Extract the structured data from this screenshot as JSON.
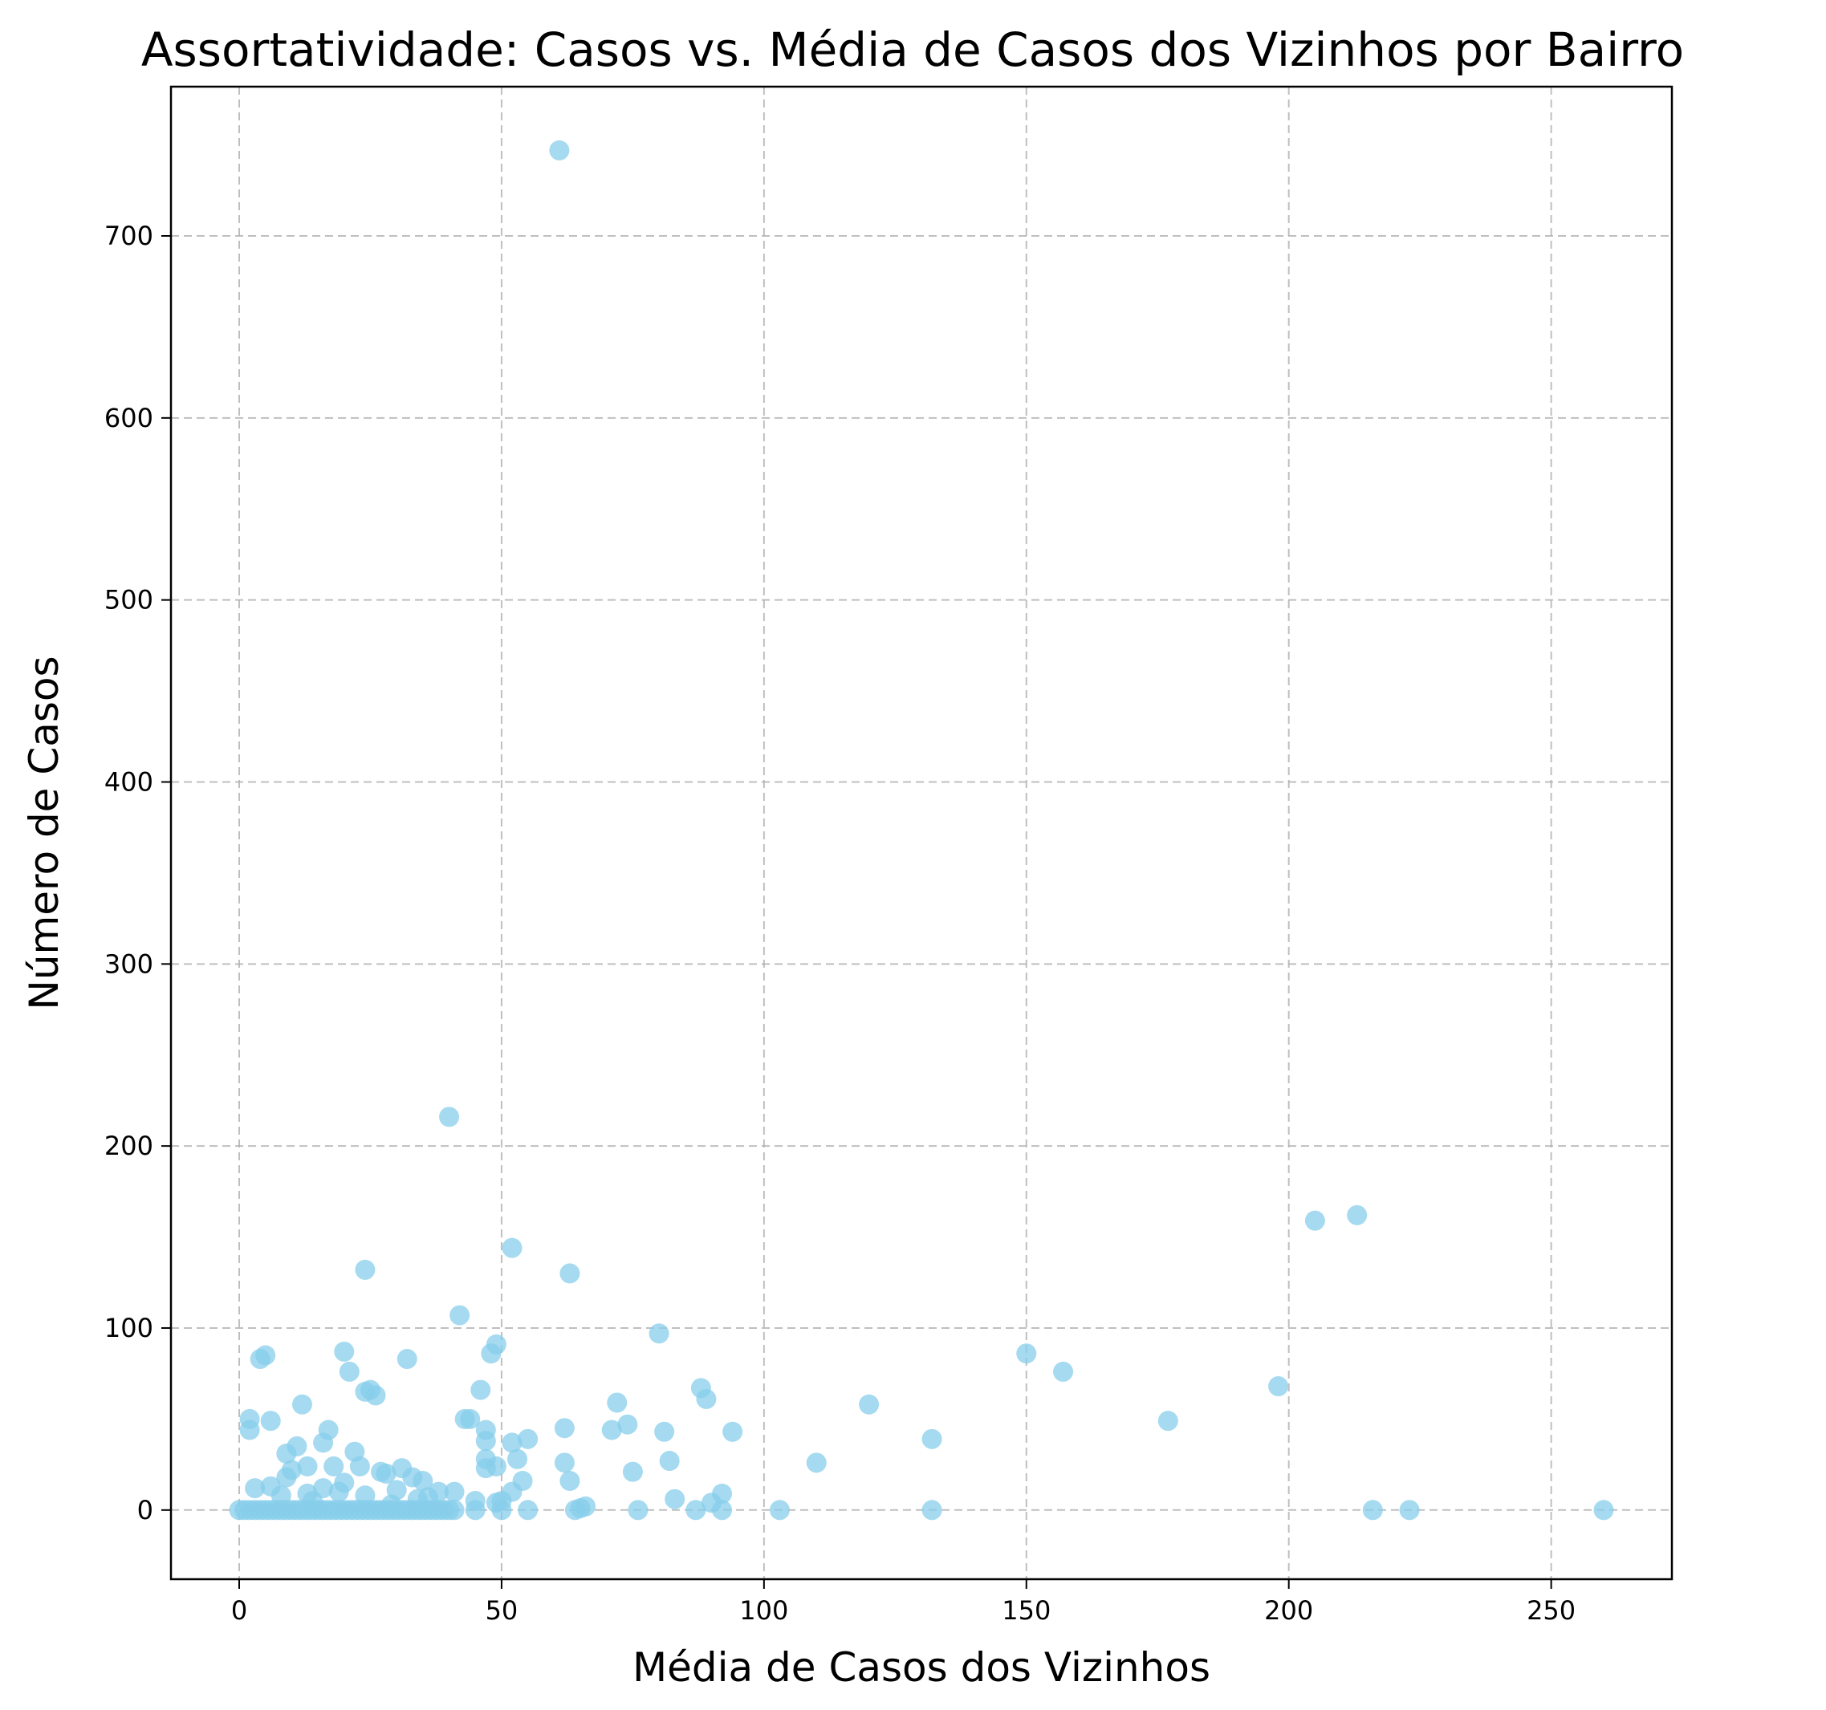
{
  "chart_data": {
    "type": "scatter",
    "title": "Assortatividade: Casos vs. Média de Casos dos Vizinhos por Bairro",
    "xlabel": "Média de Casos dos Vizinhos",
    "ylabel": "Número de Casos",
    "xlim": [
      -13,
      273
    ],
    "ylim": [
      -38,
      782
    ],
    "xticks": [
      "0",
      "50",
      "100",
      "150",
      "200",
      "250"
    ],
    "xtick_values": [
      0,
      50,
      100,
      150,
      200,
      250
    ],
    "yticks": [
      "0",
      "100",
      "200",
      "300",
      "400",
      "500",
      "600",
      "700"
    ],
    "ytick_values": [
      0,
      100,
      200,
      300,
      400,
      500,
      600,
      700
    ],
    "grid": true,
    "marker_color": "#87ceeb",
    "marker_alpha": 0.75,
    "series": [
      {
        "x": [
          61,
          40,
          205,
          213,
          24,
          52,
          63,
          42,
          80,
          49,
          48,
          150,
          157,
          198,
          88,
          89,
          20,
          21,
          4,
          5,
          32,
          24,
          26,
          46,
          12,
          2,
          6,
          2,
          120,
          177,
          72,
          74,
          94,
          81,
          82,
          71,
          55,
          62,
          132,
          110,
          17,
          25,
          10,
          6,
          9,
          11,
          13,
          16,
          18,
          22,
          23,
          27,
          28,
          31,
          33,
          35,
          43,
          44,
          47,
          47,
          47,
          52,
          53,
          47,
          49,
          62,
          75,
          54,
          52,
          63,
          92,
          90,
          83,
          66,
          65,
          0,
          1,
          2,
          3,
          4,
          5,
          6,
          7,
          8,
          9,
          10,
          11,
          12,
          13,
          14,
          15,
          16,
          17,
          18,
          19,
          20,
          21,
          22,
          23,
          24,
          25,
          26,
          27,
          28,
          29,
          30,
          31,
          32,
          33,
          34,
          35,
          36,
          37,
          38,
          39,
          40,
          41,
          45,
          50,
          55,
          64,
          76,
          87,
          92,
          103,
          132,
          216,
          223,
          260,
          45,
          50,
          3,
          8,
          14,
          19,
          29,
          36,
          41,
          49,
          9,
          13,
          16,
          20,
          24,
          30,
          34,
          38
        ],
        "y": [
          747,
          216,
          159,
          162,
          132,
          144,
          130,
          107,
          97,
          91,
          86,
          86,
          76,
          68,
          67,
          61,
          87,
          76,
          83,
          85,
          83,
          65,
          63,
          66,
          58,
          50,
          49,
          44,
          58,
          49,
          59,
          47,
          43,
          43,
          27,
          44,
          39,
          45,
          39,
          26,
          44,
          66,
          22,
          13,
          31,
          35,
          24,
          37,
          24,
          32,
          24,
          21,
          20,
          23,
          18,
          16,
          50,
          50,
          44,
          38,
          28,
          37,
          28,
          23,
          24,
          26,
          21,
          16,
          10,
          16,
          9,
          4,
          6,
          2,
          1,
          0,
          0,
          0,
          0,
          0,
          0,
          0,
          0,
          0,
          0,
          0,
          0,
          0,
          0,
          0,
          0,
          0,
          0,
          0,
          0,
          0,
          0,
          0,
          0,
          0,
          0,
          0,
          0,
          0,
          0,
          0,
          0,
          0,
          0,
          0,
          0,
          0,
          0,
          0,
          0,
          0,
          0,
          0,
          0,
          0,
          0,
          0,
          0,
          0,
          0,
          0,
          0,
          0,
          0,
          5,
          5,
          12,
          8,
          5,
          10,
          3,
          7,
          10,
          4,
          18,
          9,
          12,
          15,
          8,
          11,
          6,
          10
        ]
      }
    ]
  }
}
